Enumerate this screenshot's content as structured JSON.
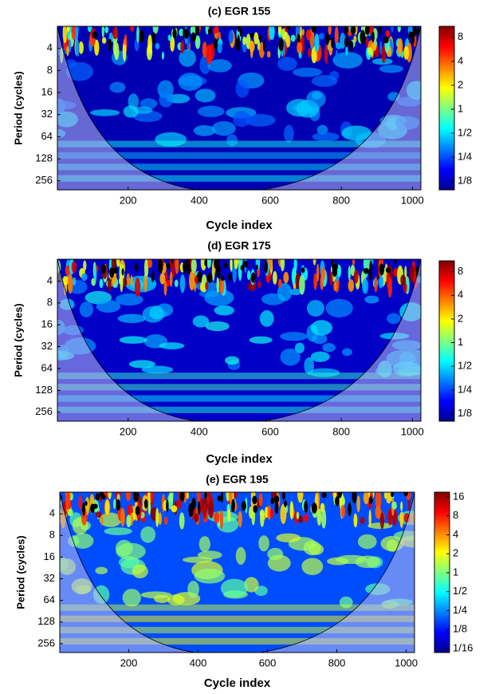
{
  "chart_data": [
    {
      "type": "heatmap",
      "title": "(c) EGR 155",
      "xlabel": "Cycle index",
      "ylabel": "Period (cycles)",
      "xlim": [
        1,
        1024
      ],
      "xticks": [
        200,
        400,
        600,
        800,
        1000
      ],
      "ylim": [
        2,
        340
      ],
      "yticks": [
        4,
        8,
        16,
        32,
        64,
        128,
        256
      ],
      "y_scale": "log2",
      "y_reversed": true,
      "colormap": "jet",
      "colorbar": {
        "lim": [
          0.097,
          11
        ],
        "scale": "log2",
        "ticks": [
          {
            "value": 0.125,
            "label": "1/8"
          },
          {
            "value": 0.25,
            "label": "1/4"
          },
          {
            "value": 0.5,
            "label": "1/2"
          },
          1,
          2,
          4,
          8
        ]
      }
    },
    {
      "type": "heatmap",
      "title": "(d) EGR 175",
      "xlabel": "Cycle index",
      "ylabel": "Period (cycles)",
      "xlim": [
        1,
        1024
      ],
      "xticks": [
        200,
        400,
        600,
        800,
        1000
      ],
      "ylim": [
        2,
        340
      ],
      "yticks": [
        4,
        8,
        16,
        32,
        64,
        128,
        256
      ],
      "y_scale": "log2",
      "y_reversed": true,
      "colormap": "jet",
      "colorbar": {
        "lim": [
          0.1,
          11
        ],
        "scale": "log2",
        "ticks": [
          {
            "value": 0.125,
            "label": "1/8"
          },
          {
            "value": 0.25,
            "label": "1/4"
          },
          {
            "value": 0.5,
            "label": "1/2"
          },
          1,
          2,
          4,
          8
        ]
      }
    },
    {
      "type": "heatmap",
      "title": "(e) EGR 195",
      "xlabel": "Cycle index",
      "ylabel": "Period (cycles)",
      "xlim": [
        1,
        1024
      ],
      "xticks": [
        200,
        400,
        600,
        800,
        1000
      ],
      "ylim": [
        2,
        340
      ],
      "yticks": [
        4,
        8,
        16,
        32,
        64,
        128,
        256
      ],
      "y_scale": "log2",
      "y_reversed": true,
      "colormap": "jet",
      "colorbar": {
        "lim": [
          0.054,
          19
        ],
        "scale": "log2",
        "ticks": [
          {
            "value": 0.0625,
            "label": "1/16"
          },
          {
            "value": 0.125,
            "label": "1/8"
          },
          {
            "value": 0.25,
            "label": "1/4"
          },
          {
            "value": 0.5,
            "label": "1/2"
          },
          1,
          2,
          4,
          8,
          16
        ]
      }
    }
  ]
}
